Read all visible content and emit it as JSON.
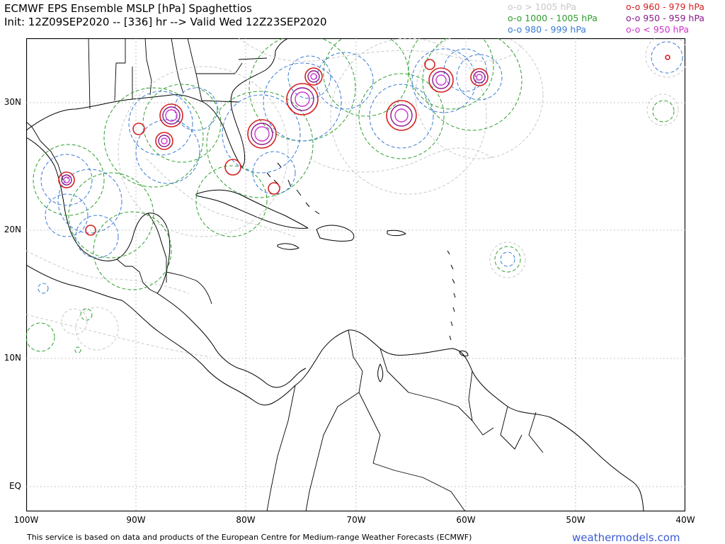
{
  "header": {
    "title": "ECMWF EPS Ensemble MSLP [hPa] Spaghettios",
    "subtitle": "Init: 12Z09SEP2020 -- [336] hr --> Valid Wed 12Z23SEP2020"
  },
  "legend": {
    "items": [
      {
        "text": "o-o > 1005 hPa",
        "color": "#c8c8c8"
      },
      {
        "text": "o-o 1000 - 1005 hPa",
        "color": "#2e9e2e"
      },
      {
        "text": "o-o 980 - 999 hPa",
        "color": "#3a7bd5"
      },
      {
        "text": "o-o 960 - 979 hPa",
        "color": "#d62020"
      },
      {
        "text": "o-o 950 - 959 hPa",
        "color": "#8a1a8a"
      },
      {
        "text": "o-o < 950 hPa",
        "color": "#cc33cc"
      }
    ]
  },
  "axes": {
    "lat_labels": [
      "30N",
      "20N",
      "10N",
      "EQ"
    ],
    "lon_labels": [
      "100W",
      "90W",
      "80W",
      "70W",
      "60W",
      "50W",
      "40W"
    ]
  },
  "footer": {
    "disclaimer": "This service is based on data and products of the European Centre for Medium-range Weather Forecasts (ECMWF)",
    "brand": "weathermodels.com"
  }
}
